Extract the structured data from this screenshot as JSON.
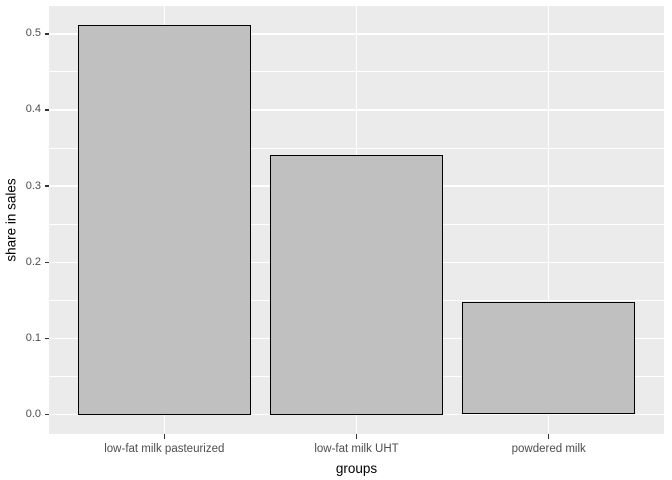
{
  "chart_data": {
    "type": "bar",
    "title": "",
    "categories": [
      "low-fat milk pasteurized",
      "low-fat milk UHT",
      "powdered milk"
    ],
    "values": [
      0.511,
      0.341,
      0.148
    ],
    "xlabel": "groups",
    "ylabel": "share in sales",
    "y_ticks": [
      0.0,
      0.1,
      0.2,
      0.3,
      0.4,
      0.5
    ],
    "y_tick_labels": [
      "0.0",
      "0.1",
      "0.2",
      "0.3",
      "0.4",
      "0.5"
    ],
    "y_minor_ticks": [
      0.05,
      0.15,
      0.25,
      0.35,
      0.45
    ],
    "ylim": [
      -0.0256,
      0.5366
    ],
    "bar_width_fraction": 0.9,
    "category_padding": 0.6,
    "grid": "major-and-minor, white on gray panel",
    "legend": "none"
  },
  "style": {
    "outer_bg": "#FFFFFF",
    "panel_bg": "#EBEBEB",
    "grid_color": "#FFFFFF",
    "bar_fill": "#C0C0C0",
    "bar_stroke": "#000000",
    "tick_mark_color": "#333333",
    "tick_label_color": "#4D4D4D",
    "axis_title_color": "#000000"
  }
}
